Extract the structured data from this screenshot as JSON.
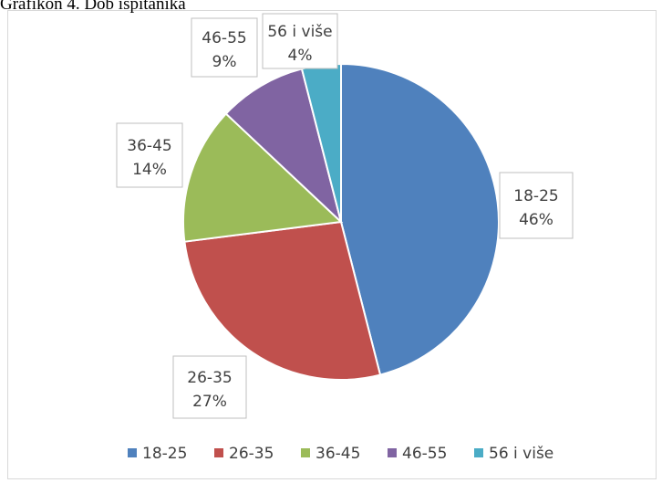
{
  "chart_data": {
    "type": "pie",
    "title": "Grafikon 4. Dob ispitanika",
    "categories": [
      "18-25",
      "26-35",
      "36-45",
      "46-55",
      "56 i više"
    ],
    "values": [
      46,
      27,
      14,
      9,
      4
    ],
    "value_labels": [
      "46%",
      "27%",
      "14%",
      "9%",
      "4%"
    ],
    "colors": [
      "#4f81bd",
      "#c0504d",
      "#9bbb59",
      "#8064a2",
      "#4bacc6"
    ],
    "legend": "bottom"
  }
}
